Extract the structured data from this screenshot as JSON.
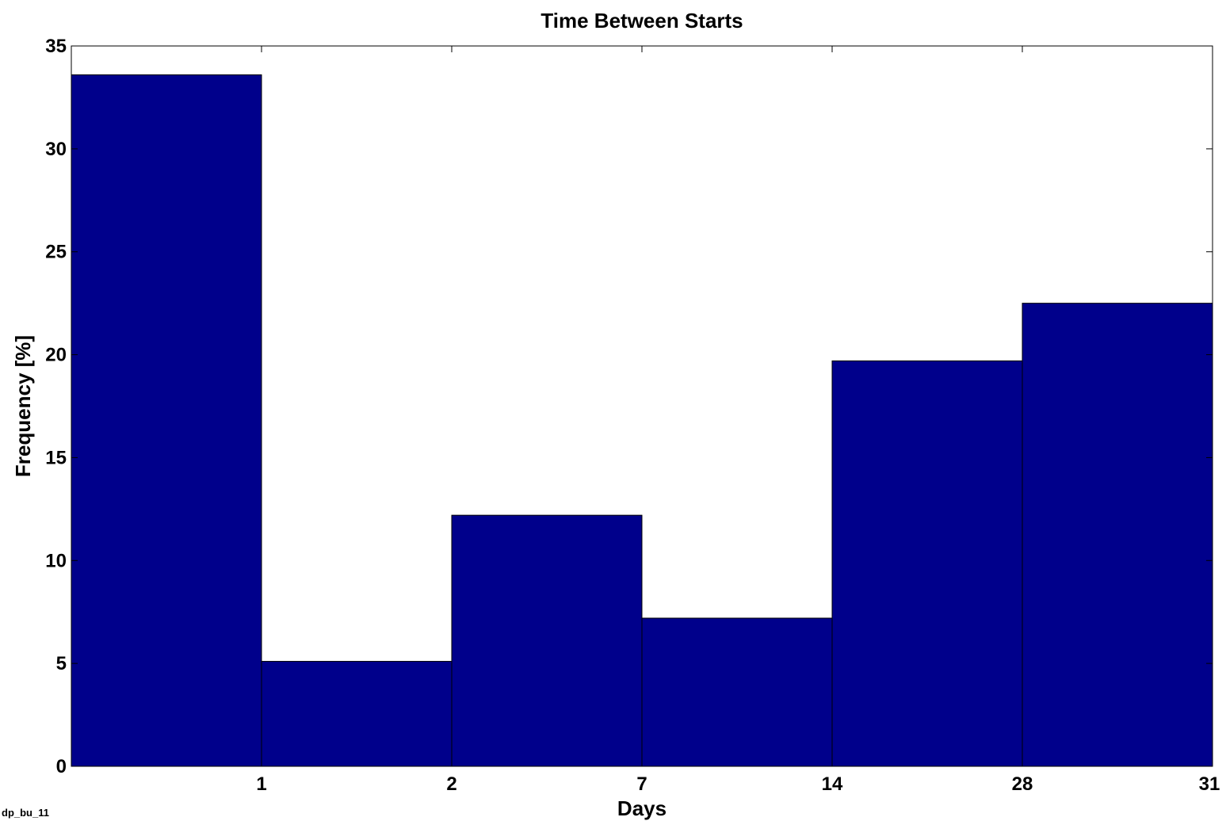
{
  "figure_tag": "dp_bu_11",
  "chart_data": {
    "type": "bar",
    "title": "Time Between Starts",
    "xlabel": "Days",
    "ylabel": "Frequency [%]",
    "ylim": [
      0,
      35
    ],
    "yticks": [
      0,
      5,
      10,
      15,
      20,
      25,
      30,
      35
    ],
    "xtick_labels": [
      "1",
      "2",
      "7",
      "14",
      "28",
      "31"
    ],
    "bin_edges": [
      "",
      "1",
      "2",
      "7",
      "14",
      "28",
      "31"
    ],
    "values": [
      33.6,
      5.1,
      12.2,
      7.2,
      19.7,
      22.5
    ],
    "bar_color": "#00008B",
    "bar_edge_color": "#000000",
    "grid": false,
    "legend": "none"
  }
}
